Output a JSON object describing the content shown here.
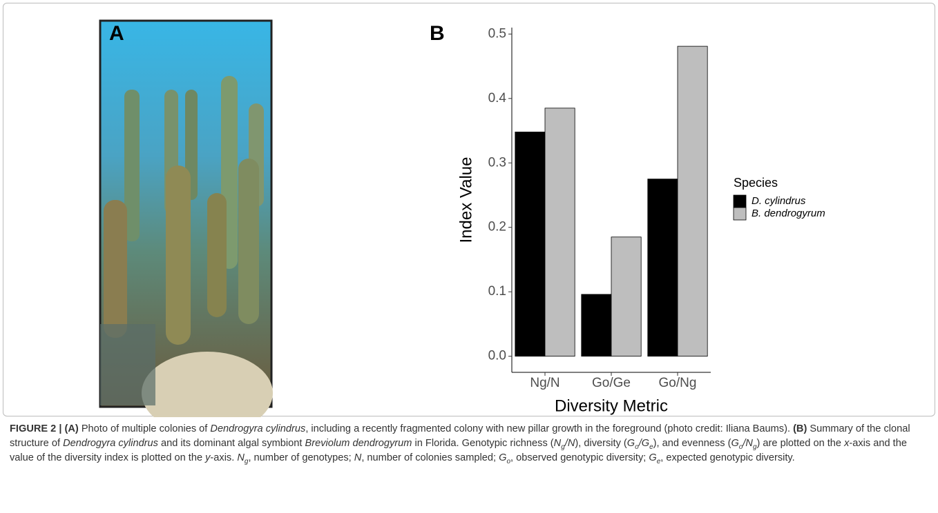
{
  "panel_a": {
    "label": "A"
  },
  "chart_data": {
    "type": "bar",
    "panel_label": "B",
    "x_label": "Diversity Metric",
    "y_label": "Index Value",
    "categories": [
      "Ng/N",
      "Go/Ge",
      "Go/Ng"
    ],
    "series": [
      {
        "name": "D. cylindrus",
        "color": "#000000",
        "values": [
          0.348,
          0.096,
          0.275
        ]
      },
      {
        "name": "B. dendrogyrum",
        "color": "#bebebe",
        "values": [
          0.385,
          0.185,
          0.481
        ]
      }
    ],
    "ylim": [
      -0.025,
      0.51
    ],
    "yticks": [
      {
        "value": 0,
        "label": "0.0"
      },
      0.1,
      0.2,
      0.3,
      0.4,
      0.5
    ],
    "grid": false,
    "legend_title": "Species",
    "legend_position": "right"
  },
  "caption": {
    "segments": [
      {
        "text": "FIGURE 2 | (A)",
        "style": "bold"
      },
      {
        "text": " Photo of multiple colonies of ",
        "style": "plain"
      },
      {
        "text": "Dendrogyra cylindrus",
        "style": "italic"
      },
      {
        "text": ", including a recently fragmented colony with new pillar growth in the foreground (photo credit: Iliana Baums). ",
        "style": "plain"
      },
      {
        "text": "(B)",
        "style": "bold"
      },
      {
        "text": " Summary of the clonal structure of ",
        "style": "plain"
      },
      {
        "text": "Dendrogyra cylindrus",
        "style": "italic"
      },
      {
        "text": " and its dominant algal symbiont ",
        "style": "plain"
      },
      {
        "text": "Breviolum dendrogyrum",
        "style": "italic"
      },
      {
        "text": " in Florida. Genotypic richness (",
        "style": "plain"
      },
      {
        "text": "N",
        "style": "italic"
      },
      {
        "text": "g",
        "style": "italic-sub"
      },
      {
        "text": "/N",
        "style": "italic"
      },
      {
        "text": "), diversity (",
        "style": "plain"
      },
      {
        "text": "G",
        "style": "italic"
      },
      {
        "text": "o",
        "style": "italic-sub"
      },
      {
        "text": "/G",
        "style": "italic"
      },
      {
        "text": "e",
        "style": "italic-sub"
      },
      {
        "text": "), and evenness (",
        "style": "plain"
      },
      {
        "text": "G",
        "style": "italic"
      },
      {
        "text": "o",
        "style": "italic-sub"
      },
      {
        "text": "/N",
        "style": "italic"
      },
      {
        "text": "g",
        "style": "italic-sub"
      },
      {
        "text": ") are plotted on the ",
        "style": "plain"
      },
      {
        "text": "x",
        "style": "italic"
      },
      {
        "text": "-axis and the value of the diversity index is plotted on the ",
        "style": "plain"
      },
      {
        "text": "y",
        "style": "italic"
      },
      {
        "text": "-axis. ",
        "style": "plain"
      },
      {
        "text": "N",
        "style": "italic"
      },
      {
        "text": "g",
        "style": "italic-sub"
      },
      {
        "text": ", number of genotypes; ",
        "style": "plain"
      },
      {
        "text": "N",
        "style": "italic"
      },
      {
        "text": ", number of colonies sampled; ",
        "style": "plain"
      },
      {
        "text": "G",
        "style": "italic"
      },
      {
        "text": "o",
        "style": "italic-sub"
      },
      {
        "text": ", observed genotypic diversity; ",
        "style": "plain"
      },
      {
        "text": "G",
        "style": "italic"
      },
      {
        "text": "e",
        "style": "italic-sub"
      },
      {
        "text": ", expected genotypic diversity.",
        "style": "plain"
      }
    ]
  }
}
